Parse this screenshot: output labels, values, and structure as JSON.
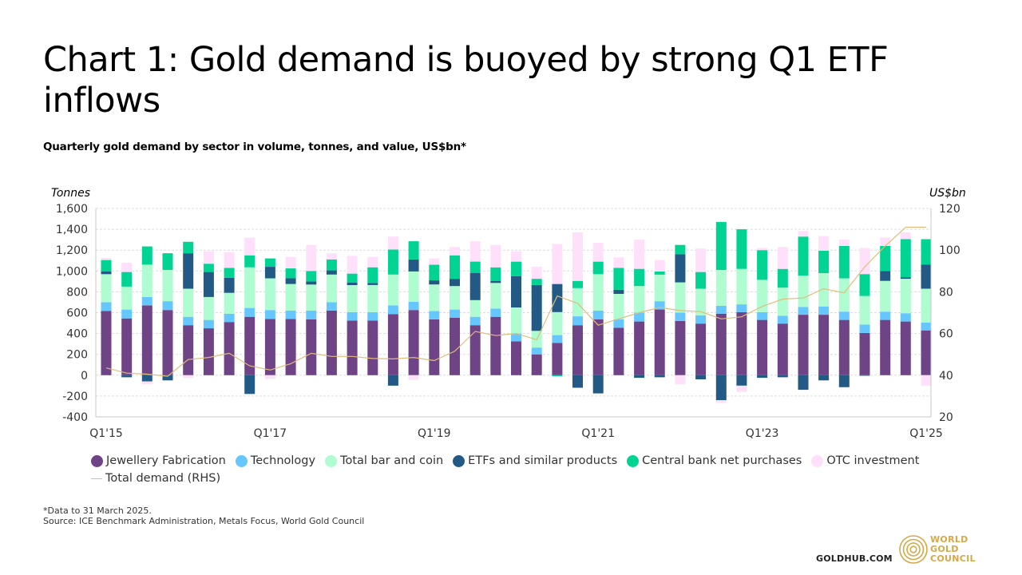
{
  "header": {
    "title": "Chart 1: Gold demand is buoyed by strong Q1 ETF inflows",
    "subtitle": "Quarterly gold demand by sector in volume, tonnes, and value, US$bn*"
  },
  "footer": {
    "note": "*Data to 31 March 2025.",
    "source": "Source: ICE Benchmark Administration, Metals Focus, World Gold Council",
    "site": "GOLDHUB.COM",
    "logo_lines": [
      "WORLD",
      "GOLD",
      "COUNCIL"
    ]
  },
  "chart_data": {
    "type": "bar",
    "stacked": true,
    "title": "Chart 1: Gold demand is buoyed by strong Q1 ETF inflows",
    "subtitle": "Quarterly gold demand by sector in volume, tonnes, and value, US$bn*",
    "ylabel": "Tonnes",
    "y2label": "US$bn",
    "ylim": [
      -400,
      1600
    ],
    "y2lim": [
      20,
      120
    ],
    "yticks": [
      "1,600",
      "1,400",
      "1,200",
      "1,000",
      "800",
      "600",
      "400",
      "200",
      "0",
      "-200",
      "-400"
    ],
    "y2ticks": [
      "120",
      "100",
      "80",
      "60",
      "40",
      "20"
    ],
    "xtick_labels": [
      "Q1'15",
      "Q1'17",
      "Q1'19",
      "Q1'21",
      "Q1'23",
      "Q1'25"
    ],
    "xtick_indices": [
      0,
      8,
      16,
      24,
      32,
      40
    ],
    "grid": true,
    "legend_position": "bottom",
    "categories": [
      "Q1'15",
      "Q2'15",
      "Q3'15",
      "Q4'15",
      "Q1'16",
      "Q2'16",
      "Q3'16",
      "Q4'16",
      "Q1'17",
      "Q2'17",
      "Q3'17",
      "Q4'17",
      "Q1'18",
      "Q2'18",
      "Q3'18",
      "Q4'18",
      "Q1'19",
      "Q2'19",
      "Q3'19",
      "Q4'19",
      "Q1'20",
      "Q2'20",
      "Q3'20",
      "Q4'20",
      "Q1'21",
      "Q2'21",
      "Q3'21",
      "Q4'21",
      "Q1'22",
      "Q2'22",
      "Q3'22",
      "Q4'22",
      "Q1'23",
      "Q2'23",
      "Q3'23",
      "Q4'23",
      "Q1'24",
      "Q2'24",
      "Q3'24",
      "Q4'24",
      "Q1'25"
    ],
    "series": [
      {
        "name": "Jewellery Fabrication",
        "color": "#6f4487",
        "values": [
          615,
          545,
          670,
          625,
          480,
          450,
          510,
          560,
          540,
          540,
          535,
          620,
          525,
          525,
          585,
          625,
          535,
          550,
          480,
          560,
          325,
          200,
          310,
          480,
          535,
          455,
          515,
          630,
          520,
          495,
          590,
          605,
          530,
          495,
          580,
          580,
          530,
          405,
          530,
          515,
          430
        ]
      },
      {
        "name": "Technology",
        "color": "#66c7ff",
        "values": [
          85,
          85,
          80,
          85,
          80,
          80,
          80,
          85,
          85,
          80,
          85,
          80,
          80,
          80,
          85,
          80,
          80,
          80,
          80,
          80,
          75,
          65,
          75,
          85,
          85,
          80,
          85,
          80,
          80,
          80,
          75,
          75,
          75,
          75,
          75,
          80,
          80,
          80,
          80,
          80,
          75
        ]
      },
      {
        "name": "Total bar and coin",
        "color": "#aefccf",
        "values": [
          270,
          220,
          310,
          300,
          270,
          220,
          200,
          390,
          305,
          255,
          250,
          265,
          260,
          260,
          295,
          290,
          255,
          225,
          160,
          245,
          250,
          160,
          220,
          270,
          350,
          245,
          255,
          255,
          290,
          255,
          345,
          340,
          310,
          270,
          300,
          320,
          320,
          275,
          295,
          330,
          325
        ]
      },
      {
        "name": "ETFs and similar products",
        "color": "#225a85",
        "values": [
          25,
          -20,
          -60,
          -50,
          340,
          240,
          145,
          -180,
          110,
          55,
          30,
          40,
          25,
          20,
          -100,
          115,
          40,
          70,
          260,
          20,
          300,
          440,
          270,
          -120,
          -175,
          40,
          -25,
          -20,
          270,
          -40,
          -240,
          -100,
          -25,
          -20,
          -140,
          -50,
          -115,
          -5,
          95,
          15,
          230
        ]
      },
      {
        "name": "Central bank net purchases",
        "color": "#00d392",
        "values": [
          110,
          140,
          175,
          160,
          110,
          80,
          95,
          115,
          80,
          95,
          100,
          105,
          85,
          150,
          240,
          175,
          150,
          225,
          110,
          130,
          140,
          60,
          -10,
          70,
          120,
          210,
          165,
          30,
          90,
          160,
          460,
          380,
          285,
          180,
          375,
          215,
          310,
          210,
          240,
          365,
          245
        ]
      },
      {
        "name": "OTC investment",
        "color": "#ffe0fb",
        "values": [
          20,
          90,
          -25,
          0,
          -25,
          120,
          150,
          170,
          -35,
          110,
          250,
          60,
          170,
          100,
          125,
          -45,
          60,
          80,
          195,
          215,
          100,
          115,
          385,
          465,
          180,
          100,
          280,
          110,
          -85,
          225,
          -25,
          -60,
          20,
          210,
          55,
          140,
          60,
          250,
          80,
          65,
          -100
        ]
      },
      {
        "name": "Total demand (RHS)",
        "color": "#e0bd7a",
        "type": "line",
        "axis": "right",
        "values": [
          43.5,
          41,
          40.5,
          39.5,
          47.5,
          48.5,
          50.5,
          44.5,
          42.5,
          45.5,
          50.5,
          49,
          49,
          48,
          47.8,
          48.5,
          47,
          51.5,
          61,
          59,
          60,
          57,
          78,
          74.5,
          64,
          67,
          70,
          72.5,
          71,
          70.5,
          67,
          68,
          73,
          76.5,
          77,
          81.5,
          79.5,
          92,
          102,
          111,
          111
        ]
      }
    ]
  }
}
